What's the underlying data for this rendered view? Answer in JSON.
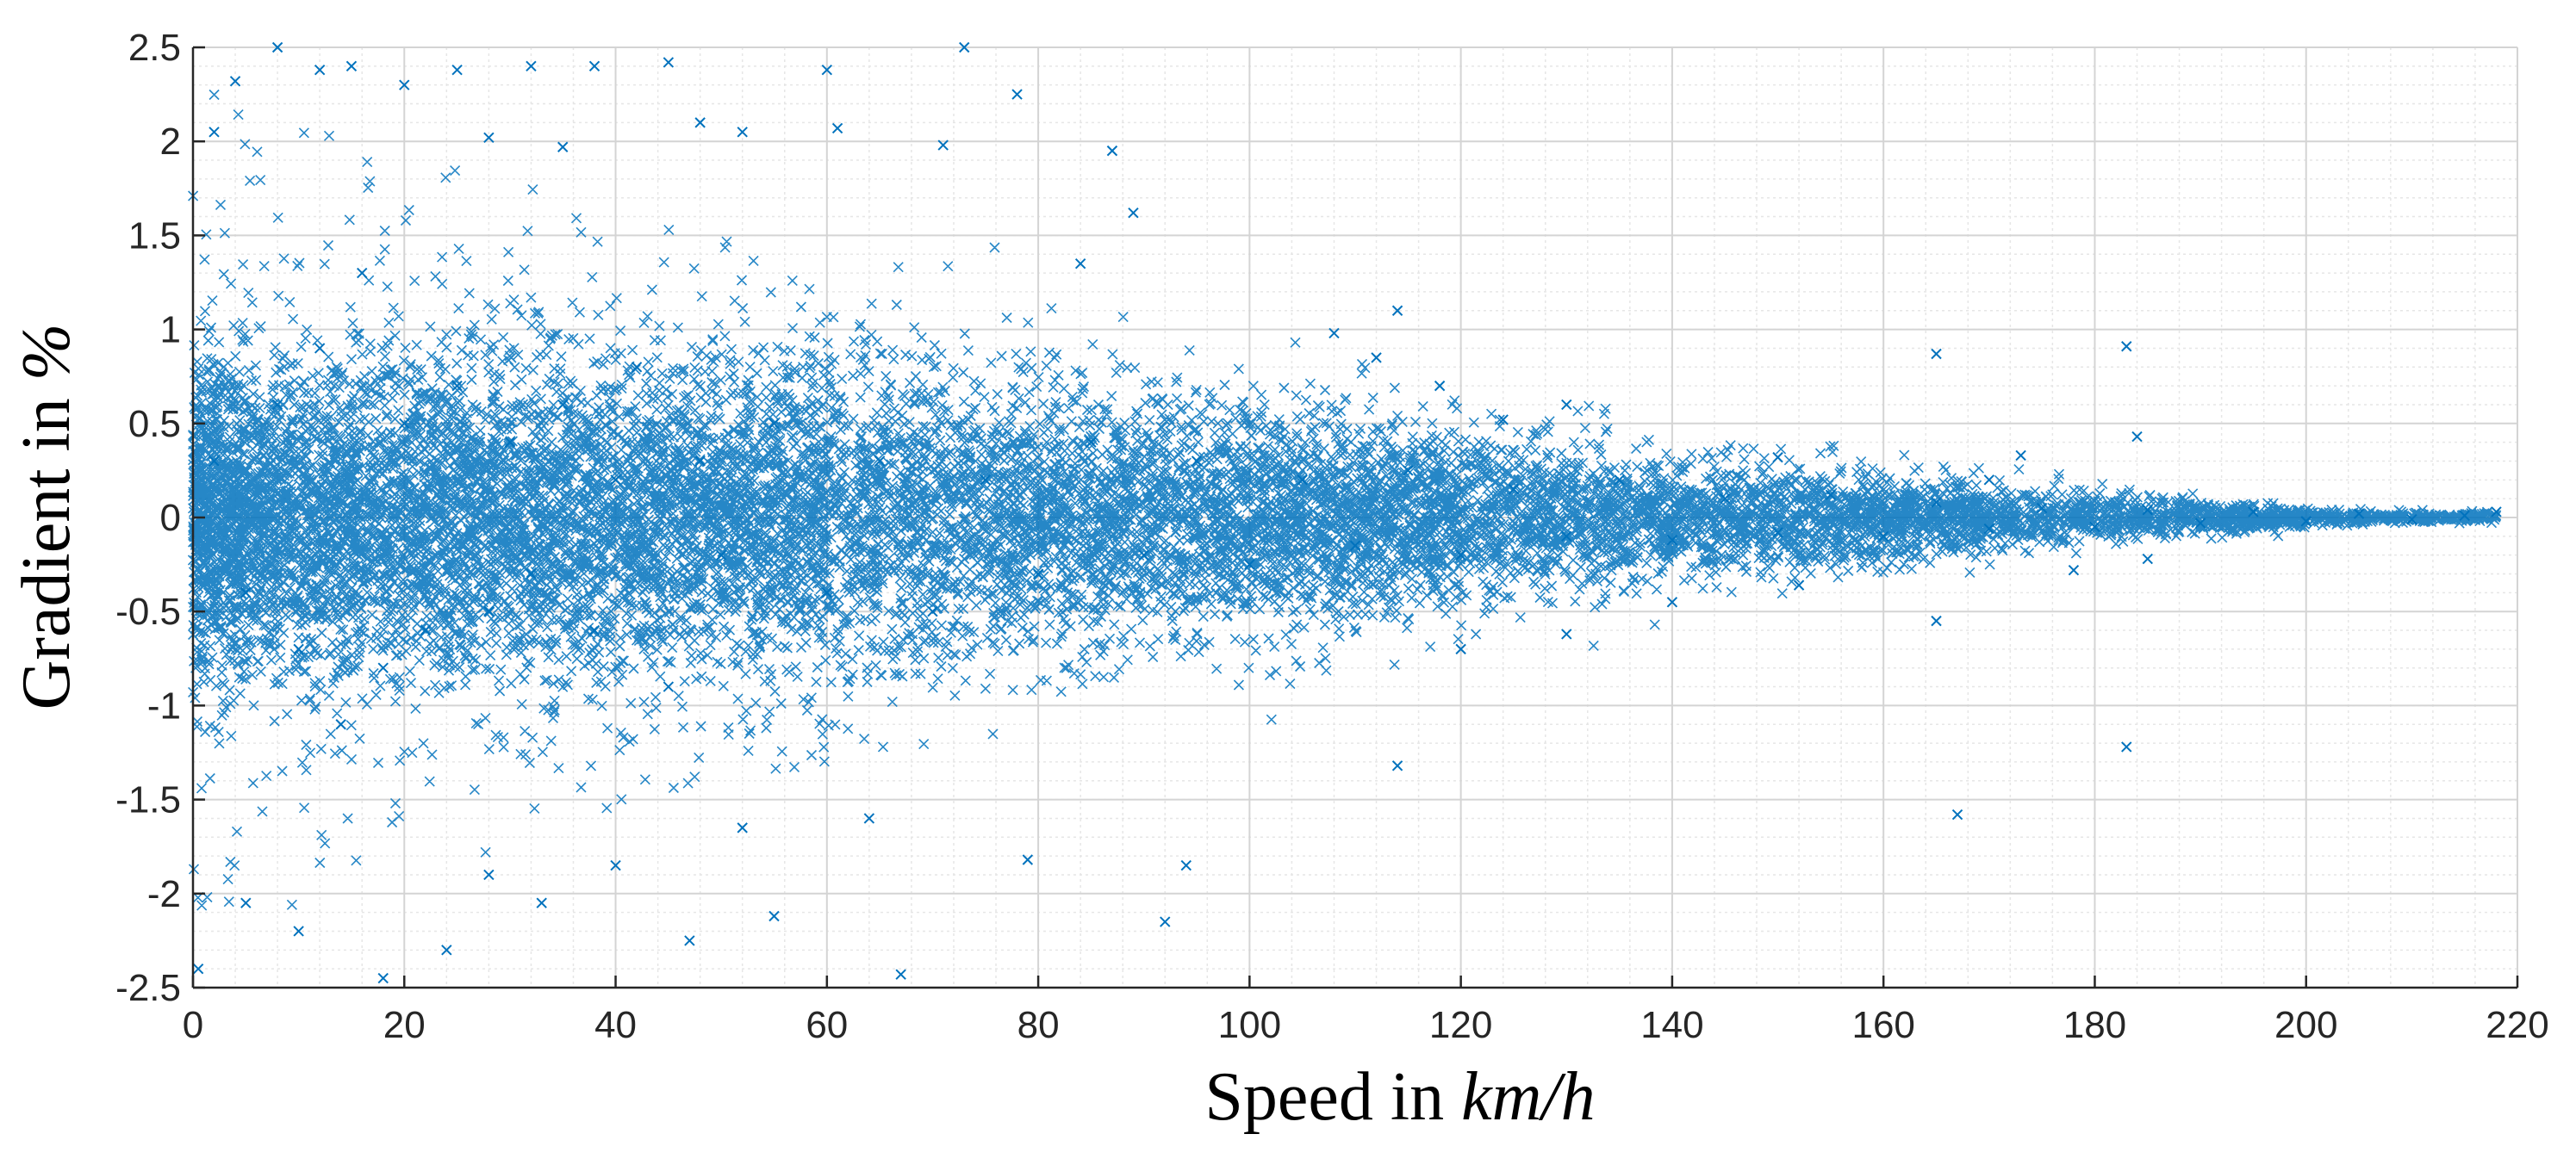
{
  "chart_data": {
    "type": "scatter",
    "title": "",
    "xlabel": {
      "prefix": "Speed in ",
      "unit": "km/h"
    },
    "ylabel": {
      "prefix": "Gradient in ",
      "unit": "%"
    },
    "xlim": [
      0,
      220
    ],
    "ylim": [
      -2.5,
      2.5
    ],
    "x_ticks": [
      0,
      20,
      40,
      60,
      80,
      100,
      120,
      140,
      160,
      180,
      200,
      220
    ],
    "x_tick_labels": [
      "0",
      "20",
      "40",
      "60",
      "80",
      "100",
      "120",
      "140",
      "160",
      "180",
      "200",
      "220"
    ],
    "y_ticks": [
      -2.5,
      -2,
      -1.5,
      -1,
      -0.5,
      0,
      0.5,
      1,
      1.5,
      2,
      2.5
    ],
    "y_tick_labels": [
      "-2.5",
      "-2",
      "-1.5",
      "-1",
      "-0.5",
      "0",
      "0.5",
      "1",
      "1.5",
      "2",
      "2.5"
    ],
    "grid": true,
    "minor_grid": true,
    "marker": "x",
    "series_color": "#0072BD",
    "series": [
      {
        "x": [
          2,
          5,
          8,
          10,
          12,
          14,
          16,
          18,
          20,
          22,
          25,
          28,
          30,
          32,
          35,
          38,
          40,
          42,
          45,
          48,
          50,
          55,
          60,
          65,
          70,
          75,
          80,
          85,
          90,
          95,
          100,
          105,
          110,
          115,
          120,
          125,
          130,
          135,
          140,
          145,
          150,
          155,
          160,
          165,
          170,
          175,
          180,
          185,
          190,
          195,
          200,
          205,
          210,
          215,
          218
        ],
        "y": [
          0.3,
          -0.4,
          0.6,
          -0.7,
          0.9,
          -1.1,
          1.3,
          -0.8,
          0.5,
          -0.6,
          0.7,
          -0.5,
          0.4,
          -0.3,
          0.6,
          -0.6,
          0.2,
          0.8,
          -0.9,
          0.3,
          -0.2,
          0.5,
          -0.4,
          0.3,
          -0.5,
          0.2,
          -0.3,
          0.4,
          -0.2,
          0.3,
          -0.25,
          0.2,
          -0.15,
          0.25,
          -0.2,
          0.15,
          -0.1,
          0.2,
          -0.12,
          0.1,
          -0.08,
          0.12,
          -0.1,
          0.08,
          -0.06,
          0.05,
          -0.05,
          0.04,
          -0.03,
          0.03,
          -0.02,
          0.02,
          -0.01,
          0.01,
          0.03
        ]
      }
    ],
    "outliers": [
      {
        "x": 8,
        "y": 2.5
      },
      {
        "x": 73,
        "y": 2.5
      },
      {
        "x": 15,
        "y": 2.4
      },
      {
        "x": 45,
        "y": 2.42
      },
      {
        "x": 60,
        "y": 2.38
      },
      {
        "x": 2,
        "y": 2.05
      },
      {
        "x": 61,
        "y": 2.07
      },
      {
        "x": 71,
        "y": 1.98
      },
      {
        "x": 78,
        "y": 2.25
      },
      {
        "x": 87,
        "y": 1.95
      },
      {
        "x": 89,
        "y": 1.62
      },
      {
        "x": 84,
        "y": 1.35
      },
      {
        "x": 108,
        "y": 0.98
      },
      {
        "x": 114,
        "y": 1.1
      },
      {
        "x": 112,
        "y": 0.85
      },
      {
        "x": 165,
        "y": 0.87
      },
      {
        "x": 183,
        "y": 0.91
      },
      {
        "x": 184,
        "y": 0.43
      },
      {
        "x": 167,
        "y": -1.58
      },
      {
        "x": 183,
        "y": -1.22
      },
      {
        "x": 165,
        "y": -0.55
      },
      {
        "x": 114,
        "y": -1.32
      },
      {
        "x": 92,
        "y": -2.15
      },
      {
        "x": 67,
        "y": -2.43
      },
      {
        "x": 55,
        "y": -2.12
      },
      {
        "x": 47,
        "y": -2.25
      },
      {
        "x": 18,
        "y": -2.45
      },
      {
        "x": 0.5,
        "y": -2.4
      },
      {
        "x": 94,
        "y": -1.85
      },
      {
        "x": 79,
        "y": -1.82
      },
      {
        "x": 33,
        "y": -2.05
      },
      {
        "x": 24,
        "y": -2.3
      },
      {
        "x": 10,
        "y": -2.2
      },
      {
        "x": 5,
        "y": -2.05
      },
      {
        "x": 28,
        "y": -1.9
      },
      {
        "x": 40,
        "y": -1.85
      },
      {
        "x": 52,
        "y": -1.65
      },
      {
        "x": 64,
        "y": -1.6
      },
      {
        "x": 38,
        "y": 2.4
      },
      {
        "x": 25,
        "y": 2.38
      },
      {
        "x": 32,
        "y": 2.4
      },
      {
        "x": 4,
        "y": 2.32
      },
      {
        "x": 12,
        "y": 2.38
      },
      {
        "x": 20,
        "y": 2.3
      },
      {
        "x": 48,
        "y": 2.1
      },
      {
        "x": 52,
        "y": 2.05
      },
      {
        "x": 35,
        "y": 1.97
      },
      {
        "x": 28,
        "y": 2.02
      },
      {
        "x": 150,
        "y": 0.32
      },
      {
        "x": 152,
        "y": -0.36
      },
      {
        "x": 170,
        "y": 0.2
      },
      {
        "x": 173,
        "y": 0.33
      },
      {
        "x": 178,
        "y": -0.28
      },
      {
        "x": 185,
        "y": -0.22
      },
      {
        "x": 130,
        "y": 0.6
      },
      {
        "x": 118,
        "y": 0.7
      },
      {
        "x": 124,
        "y": 0.52
      },
      {
        "x": 120,
        "y": -0.7
      },
      {
        "x": 130,
        "y": -0.62
      },
      {
        "x": 140,
        "y": -0.45
      }
    ]
  }
}
